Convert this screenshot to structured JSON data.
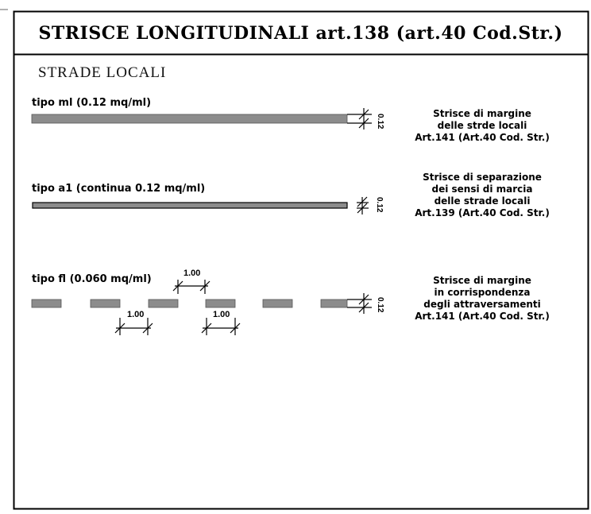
{
  "title": "STRISCE LONGITUDINALI art.138 (art.40 Cod.Str.)",
  "subtitle": "STRADE LOCALI",
  "stripe_color": "#8c8c8c",
  "sections": [
    {
      "label": "tipo ml (0.12 mq/ml)",
      "width_label": "0.12",
      "description": [
        "Strisce di margine",
        "delle strde locali",
        "Art.141 (Art.40 Cod. Str.)"
      ]
    },
    {
      "label": "tipo a1 (continua 0.12 mq/ml)",
      "width_label": "0.12",
      "description": [
        "Strisce di separazione",
        "dei sensi di marcia",
        "delle strade locali",
        "Art.139 (Art.40 Cod. Str.)"
      ]
    },
    {
      "label": "tipo fl (0.060 mq/ml)",
      "width_label": "0.12",
      "dimension_labels": [
        "1.00",
        "1.00",
        "1.00"
      ],
      "description": [
        "Strisce di margine",
        "in corrispondenza",
        "degli attraversamenti",
        "Art.141 (Art.40 Cod. Str.)"
      ]
    }
  ]
}
